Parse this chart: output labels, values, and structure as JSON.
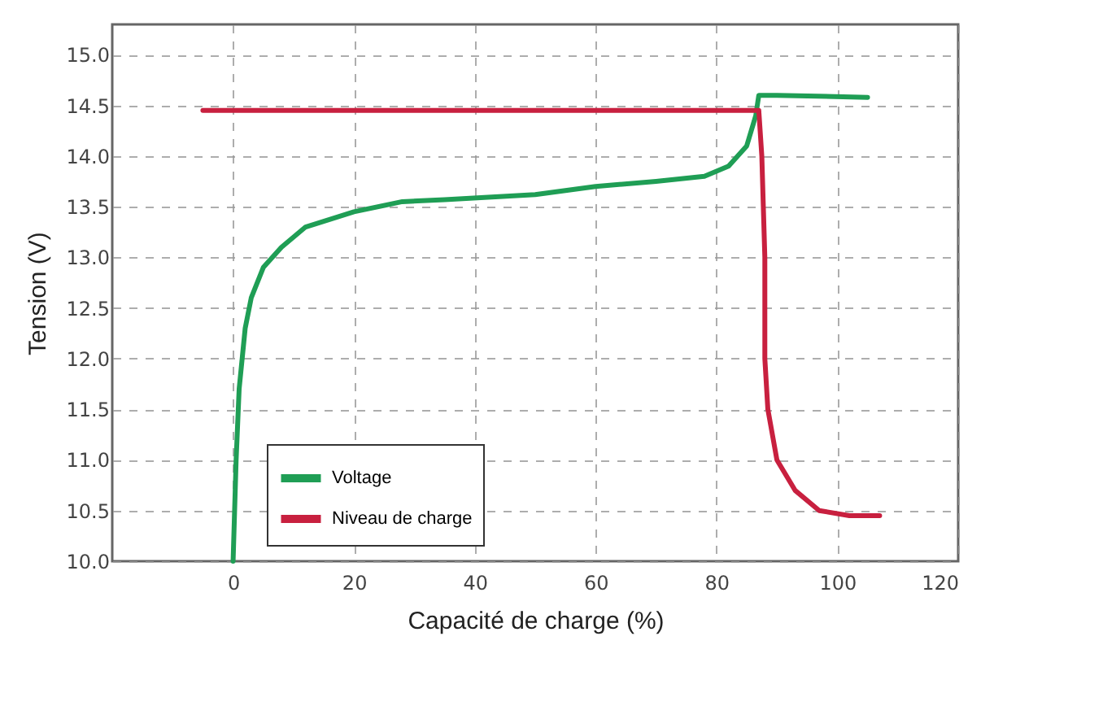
{
  "chart_data": {
    "type": "line",
    "xlabel": "Capacité de charge (%)",
    "ylabel": "Tension (V)",
    "xlim": [
      -20,
      120
    ],
    "xticks": [
      0,
      20,
      40,
      60,
      80,
      100,
      120
    ],
    "ylim": [
      10,
      15.3
    ],
    "yticks": [
      {
        "value": 10,
        "label": "10.0"
      },
      {
        "value": 10.5,
        "label": "10.5"
      },
      {
        "value": 11,
        "label": "11.0"
      },
      {
        "value": 11.5,
        "label": "11.5"
      },
      {
        "value": 12,
        "label": "12.0"
      },
      {
        "value": 12.5,
        "label": "12.5"
      },
      {
        "value": 13,
        "label": "13.0"
      },
      {
        "value": 13.5,
        "label": "13.5"
      },
      {
        "value": 14,
        "label": "14.0"
      },
      {
        "value": 14.5,
        "label": "14.5"
      },
      {
        "value": 15,
        "label": "15.0"
      }
    ],
    "grid": true,
    "legend": "bottom left",
    "marker": "none",
    "line_style": "solid",
    "series": [
      {
        "name": "Voltage",
        "color": "#1f9e55",
        "x": [
          0,
          0.5,
          1,
          2,
          3,
          5,
          8,
          12,
          20,
          28,
          35,
          50,
          60,
          70,
          78,
          82,
          85,
          86.5,
          87,
          90,
          105
        ],
        "values": [
          10,
          11,
          11.7,
          12.3,
          12.6,
          12.9,
          13.1,
          13.3,
          13.45,
          13.55,
          13.57,
          13.62,
          13.7,
          13.75,
          13.8,
          13.9,
          14.1,
          14.4,
          14.6,
          14.6,
          14.58
        ]
      },
      {
        "name": "Niveau de charge",
        "color": "#c8203f",
        "x": [
          -5,
          87,
          87.5,
          88,
          88,
          88.5,
          90,
          93,
          97,
          102,
          107
        ],
        "values": [
          14.45,
          14.45,
          14,
          13,
          12,
          11.5,
          11,
          10.7,
          10.5,
          10.45,
          10.45
        ]
      }
    ]
  }
}
